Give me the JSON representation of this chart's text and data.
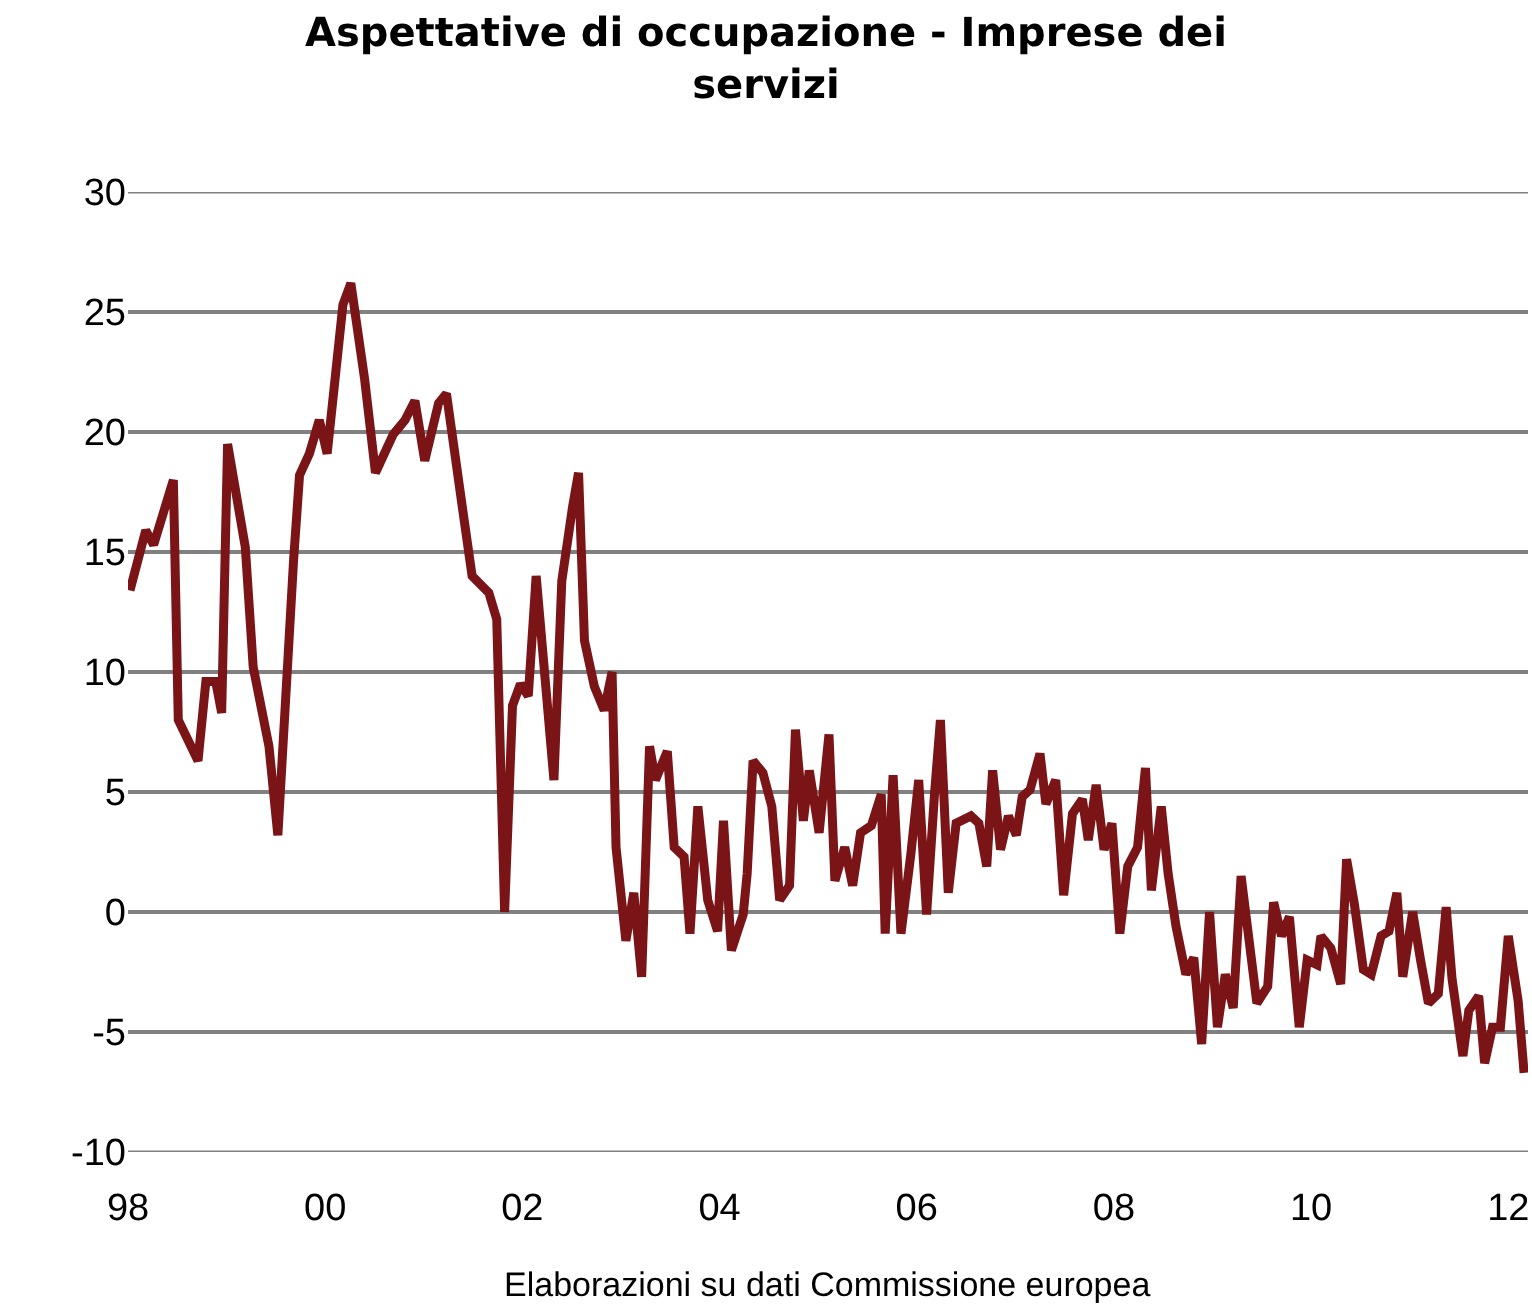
{
  "chart_data": {
    "type": "line",
    "title": "Aspettative di occupazione - Imprese dei servizi",
    "annotations": [
      "Elaborazioni su dati Commissione europea"
    ],
    "x": [
      1998.02,
      1998.18,
      1998.26,
      1998.46,
      1998.51,
      1998.71,
      1998.79,
      1998.89,
      1998.95,
      1999.01,
      1999.19,
      1999.27,
      1999.43,
      1999.52,
      1999.68,
      1999.74,
      1999.84,
      1999.94,
      2000.02,
      2000.18,
      2000.26,
      2000.4,
      2000.51,
      2000.69,
      2000.81,
      2000.91,
      2001.01,
      2001.15,
      2001.23,
      2001.39,
      2001.49,
      2001.66,
      2001.74,
      2001.82,
      2001.9,
      2001.98,
      2002.06,
      2002.14,
      2002.32,
      2002.4,
      2002.51,
      2002.57,
      2002.63,
      2002.73,
      2002.83,
      2002.91,
      2002.95,
      2003.05,
      2003.13,
      2003.21,
      2003.29,
      2003.35,
      2003.47,
      2003.54,
      2003.64,
      2003.7,
      2003.78,
      2003.88,
      2003.98,
      2004.04,
      2004.12,
      2004.24,
      2004.28,
      2004.34,
      2004.44,
      2004.53,
      2004.61,
      2004.71,
      2004.77,
      2004.85,
      2004.91,
      2005.01,
      2005.11,
      2005.17,
      2005.27,
      2005.35,
      2005.43,
      2005.54,
      2005.64,
      2005.68,
      2005.76,
      2005.84,
      2005.94,
      2006.02,
      2006.1,
      2006.18,
      2006.24,
      2006.32,
      2006.4,
      2006.55,
      2006.63,
      2006.71,
      2006.77,
      2006.85,
      2006.93,
      2007.01,
      2007.07,
      2007.15,
      2007.25,
      2007.31,
      2007.41,
      2007.49,
      2007.58,
      2007.68,
      2007.74,
      2007.82,
      2007.9,
      2007.98,
      2008.06,
      2008.14,
      2008.24,
      2008.32,
      2008.38,
      2008.48,
      2008.55,
      2008.63,
      2008.73,
      2008.81,
      2008.89,
      2008.97,
      2009.05,
      2009.13,
      2009.21,
      2009.29,
      2009.45,
      2009.56,
      2009.62,
      2009.7,
      2009.78,
      2009.88,
      2009.96,
      2010.06,
      2010.1,
      2010.2,
      2010.3,
      2010.36,
      2010.44,
      2010.53,
      2010.61,
      2010.71,
      2010.79,
      2010.87,
      2010.93,
      2011.03,
      2011.11,
      2011.19,
      2011.29,
      2011.37,
      2011.43,
      2011.54,
      2011.6,
      2011.7,
      2011.76,
      2011.84,
      2011.92,
      2012.0,
      2012.1,
      2012.16
    ],
    "series": [
      {
        "color": "#7b1416",
        "values": [
          13.4,
          15.9,
          15.3,
          18,
          8,
          6.3,
          9.6,
          9.6,
          8.3,
          19.5,
          15.2,
          10.2,
          6.9,
          3.2,
          14.7,
          18.2,
          19.1,
          20.5,
          19.1,
          25.3,
          26.2,
          22.2,
          18.3,
          19.9,
          20.5,
          21.3,
          18.8,
          21.2,
          21.6,
          16.9,
          14,
          13.3,
          12.2,
          0,
          8.6,
          9.5,
          9,
          14,
          5.5,
          13.8,
          16.9,
          18.3,
          11.3,
          9.4,
          8.4,
          10,
          2.7,
          -1.2,
          0.8,
          -2.7,
          6.9,
          5.5,
          6.7,
          2.7,
          2.3,
          -0.9,
          4.4,
          0.5,
          -0.8,
          3.8,
          -1.6,
          -0.1,
          1.6,
          6.3,
          5.8,
          4.4,
          0.5,
          1.1,
          7.6,
          3.8,
          5.9,
          3.3,
          7.4,
          1.3,
          2.7,
          1.1,
          3.3,
          3.6,
          4.9,
          -0.9,
          5.7,
          -0.9,
          2.4,
          5.5,
          -0.1,
          4.9,
          8,
          0.8,
          3.7,
          4,
          3.7,
          1.9,
          5.9,
          2.6,
          4,
          3.2,
          4.8,
          5.1,
          6.6,
          4.5,
          5.5,
          0.7,
          4.1,
          4.7,
          3,
          5.3,
          2.6,
          3.7,
          -0.9,
          1.9,
          2.7,
          6,
          0.9,
          4.4,
          1.6,
          -0.6,
          -2.6,
          -1.9,
          -5.5,
          0,
          -4.8,
          -2.6,
          -4,
          1.5,
          -3.8,
          -3.1,
          0.4,
          -1,
          -0.2,
          -4.8,
          -2,
          -2.2,
          -1,
          -1.5,
          -3,
          2.2,
          0.3,
          -2.4,
          -2.6,
          -1,
          -0.8,
          0.8,
          -2.7,
          0,
          -2,
          -3.8,
          -3.4,
          0.2,
          -2.8,
          -6,
          -4.1,
          -3.5,
          -6.3,
          -4.8,
          -4.8,
          -1,
          -3.7,
          -6.7
        ]
      }
    ],
    "xlim": [
      1998,
      2012.2
    ],
    "xticks": [
      {
        "value": 1998,
        "label": "98"
      },
      {
        "value": 2000,
        "label": "00"
      },
      {
        "value": 2002,
        "label": "02"
      },
      {
        "value": 2004,
        "label": "04"
      },
      {
        "value": 2006,
        "label": "06"
      },
      {
        "value": 2008,
        "label": "08"
      },
      {
        "value": 2010,
        "label": "10"
      },
      {
        "value": 2012,
        "label": "12"
      }
    ],
    "ylim": [
      -10,
      30
    ],
    "yticks": [
      -10,
      -5,
      0,
      5,
      10,
      15,
      20,
      25,
      30
    ],
    "grid": "y",
    "line_style": "solid",
    "marker": "none"
  }
}
